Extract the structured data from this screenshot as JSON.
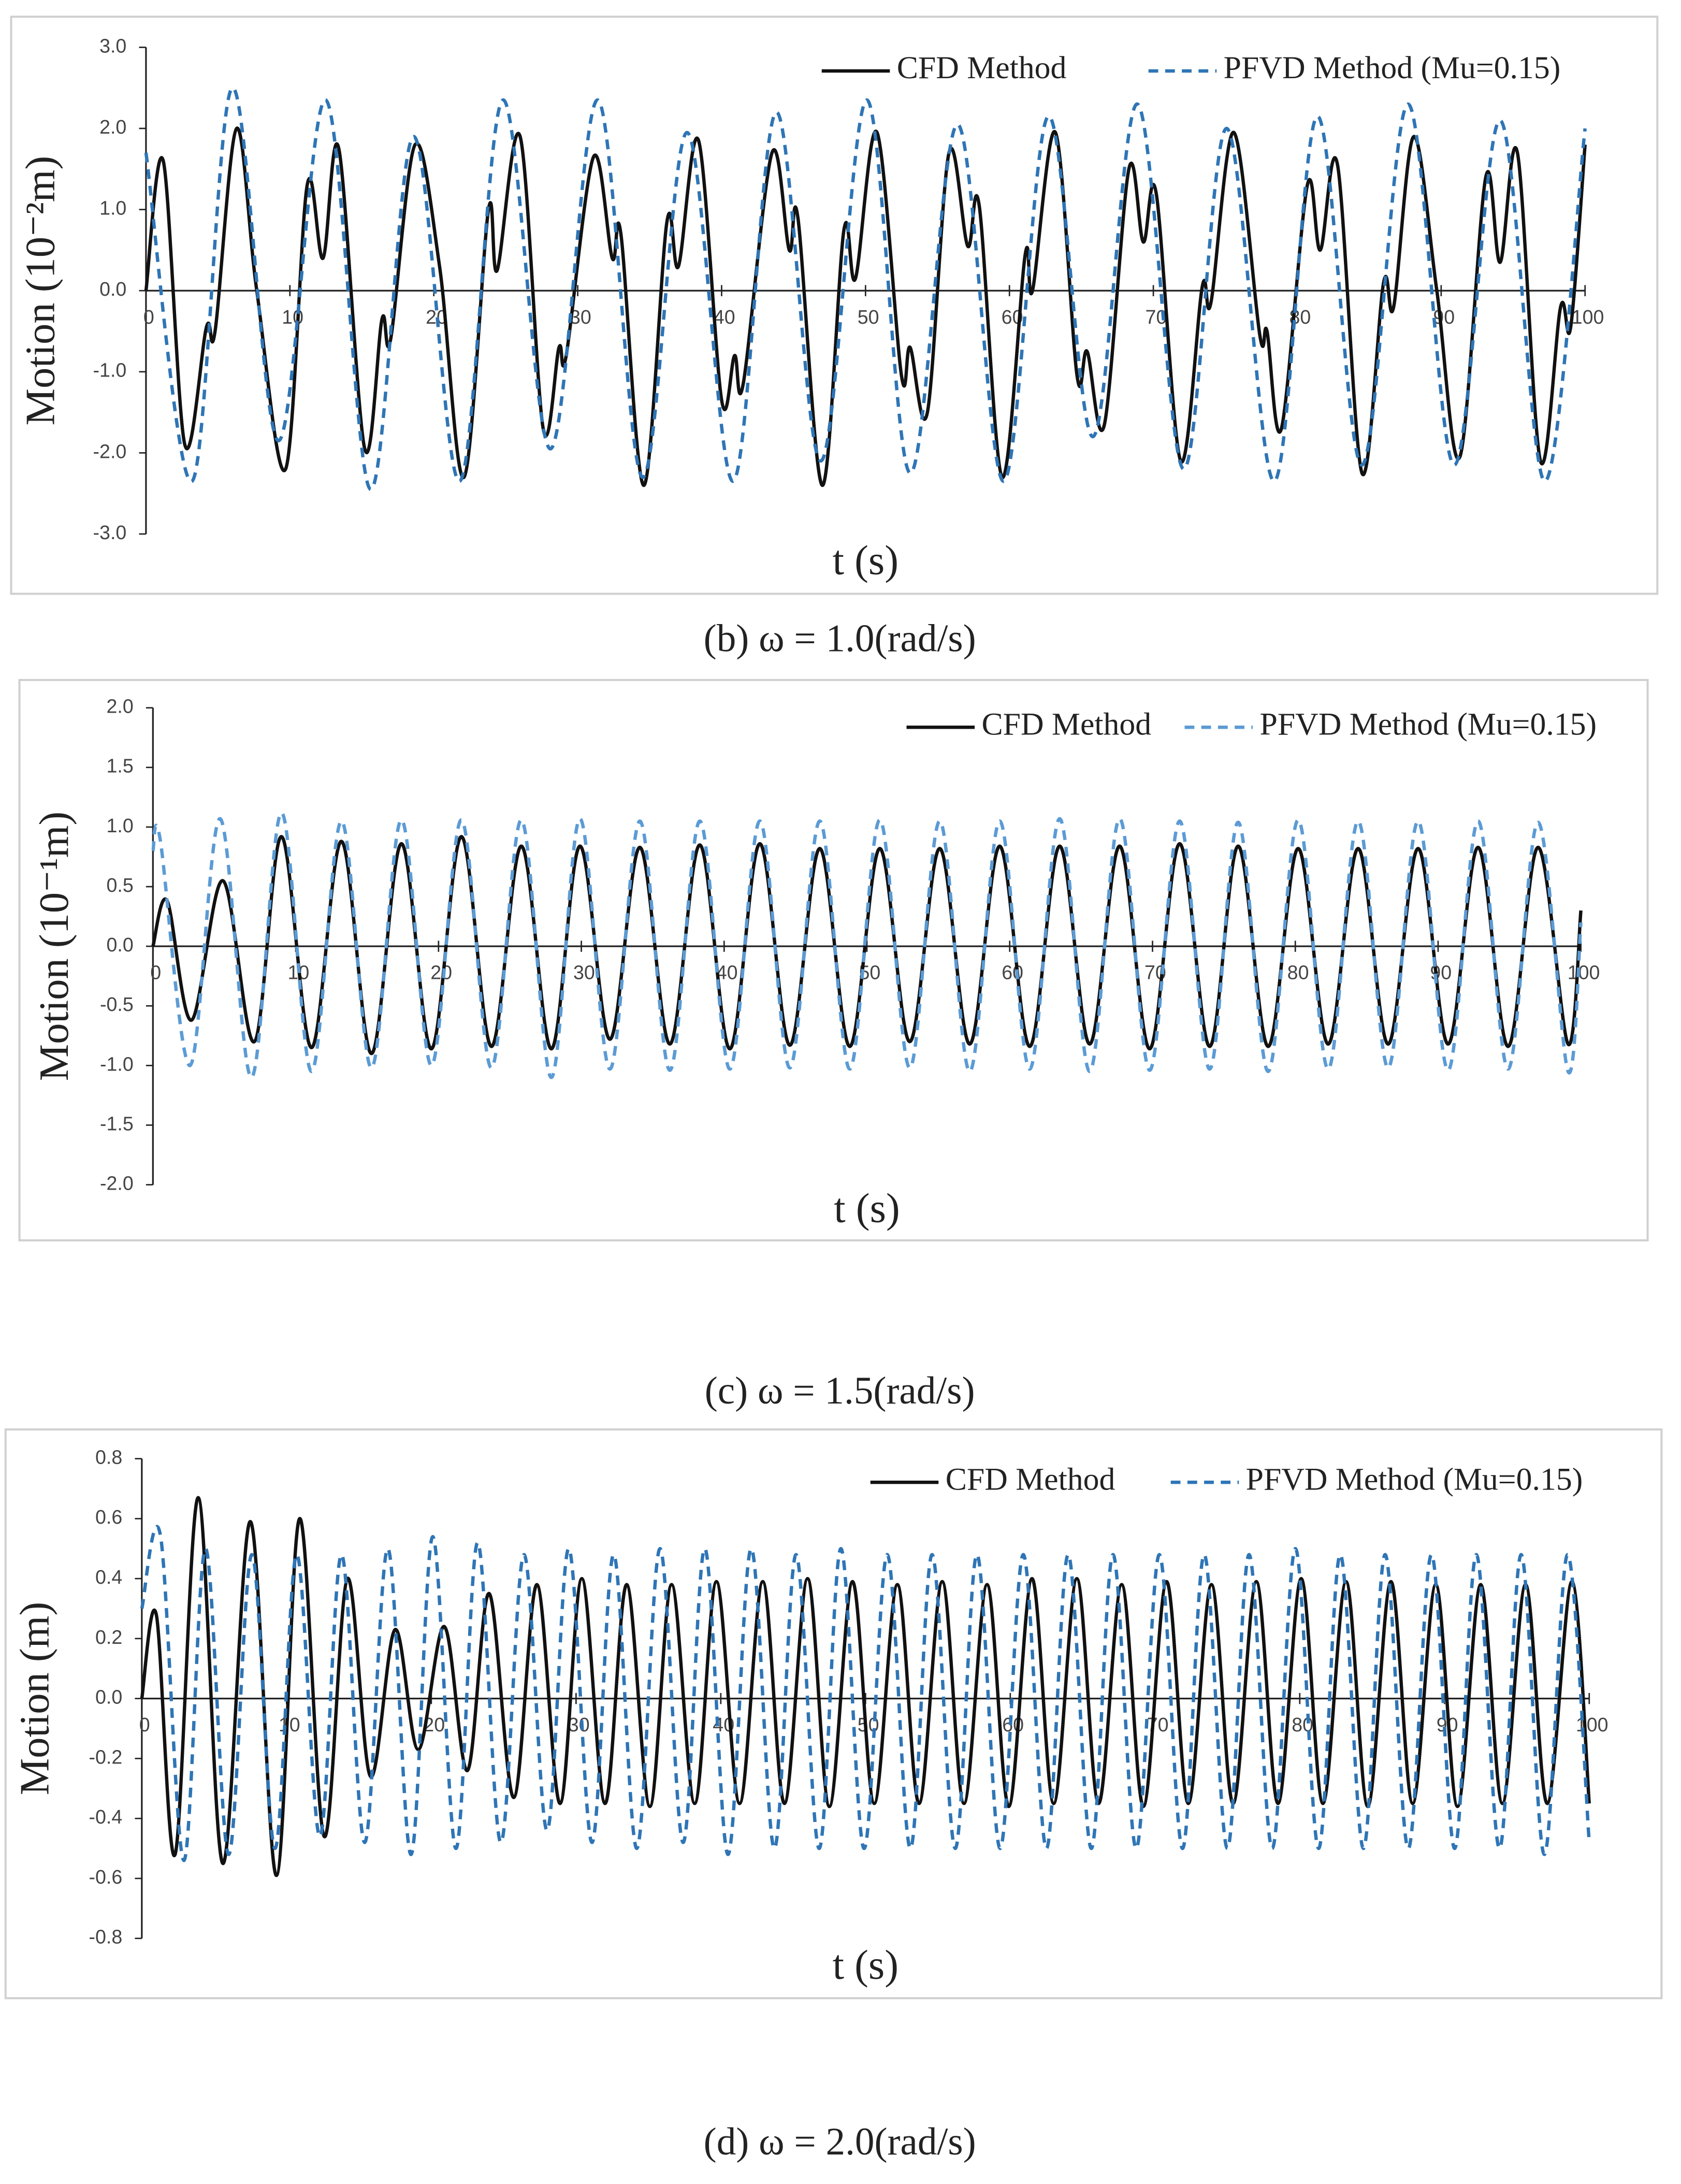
{
  "chart_data": [
    {
      "type": "line",
      "caption": "(b)  ω = 1.0(rad/s)",
      "xlabel": "t (s)",
      "ylabel": "Motion (10⁻²m)",
      "legend": "top-right",
      "xlim": [
        0,
        100
      ],
      "xticks": [
        0,
        10,
        20,
        30,
        40,
        50,
        60,
        70,
        80,
        90,
        100
      ],
      "ylim": [
        -3,
        3
      ],
      "yticks": [
        {
          "value": -3,
          "label": "-3.0"
        },
        {
          "value": -2,
          "label": "-2.0"
        },
        {
          "value": -1,
          "label": "-1.0"
        },
        {
          "value": 0,
          "label": "0.0"
        },
        {
          "value": 1,
          "label": "1.0"
        },
        {
          "value": 2,
          "label": "2.0"
        },
        {
          "value": 3,
          "label": "3.0"
        }
      ],
      "series": [
        {
          "name": "CFD Method",
          "color": "#111111",
          "dashed": false,
          "x": [
            0,
            1.2,
            2.7,
            4.2,
            4.8,
            6.3,
            7.7,
            9.7,
            11.2,
            12.3,
            13.4,
            15.2,
            16.4,
            17.0,
            18.7,
            20.4,
            22.1,
            23.8,
            24.4,
            26.0,
            27.6,
            28.7,
            29.2,
            31.1,
            32.4,
            33.0,
            34.6,
            36.2,
            37.0,
            38.4,
            40.0,
            40.9,
            41.5,
            43.5,
            44.7,
            45.3,
            47.0,
            48.5,
            49.3,
            50.8,
            52.5,
            53.1,
            54.3,
            55.8,
            57.1,
            57.9,
            59.5,
            61.1,
            61.6,
            63.2,
            64.7,
            65.4,
            66.6,
            68.3,
            69.3,
            70.2,
            71.9,
            73.4,
            74.0,
            75.6,
            77.4,
            77.9,
            78.9,
            80.7,
            81.6,
            82.8,
            84.5,
            86.0,
            86.7,
            88.1,
            89.7,
            91.3,
            93.1,
            94.1,
            95.3,
            96.9,
            98.3,
            99.0,
            100
          ],
          "values": [
            0,
            1.6,
            -1.9,
            -0.45,
            -0.5,
            2.0,
            0,
            -2.2,
            1.3,
            0.4,
            1.75,
            -1.95,
            -0.35,
            -0.6,
            1.8,
            0.3,
            -2.3,
            1.0,
            0.25,
            1.9,
            -1.7,
            -0.7,
            -0.8,
            1.65,
            0.4,
            0.7,
            -2.4,
            0.85,
            0.3,
            1.85,
            -1.35,
            -0.8,
            -1.15,
            1.7,
            0.5,
            0.9,
            -2.4,
            0.75,
            0.15,
            1.95,
            -1.05,
            -0.7,
            -1.5,
            1.7,
            0.55,
            1.05,
            -2.3,
            0.45,
            0,
            1.95,
            -1.05,
            -0.75,
            -1.65,
            1.5,
            0.6,
            1.2,
            -2.1,
            0.05,
            -0.15,
            1.95,
            -0.55,
            -0.5,
            -1.7,
            1.3,
            0.5,
            1.55,
            -2.25,
            0.1,
            -0.2,
            1.9,
            0,
            -2.05,
            1.4,
            0.35,
            1.7,
            -2.1,
            -0.2,
            -0.45,
            1.8
          ]
        },
        {
          "name": "PFVD Method (Mu=0.15)",
          "color": "#2e75b6",
          "dashed": true,
          "x": [
            0,
            3.2,
            6.0,
            9.2,
            12.5,
            15.6,
            18.6,
            21.8,
            24.8,
            28.1,
            31.4,
            34.5,
            37.6,
            40.8,
            43.8,
            46.9,
            50.1,
            53.1,
            56.4,
            59.6,
            62.7,
            65.8,
            68.9,
            72.1,
            75.1,
            78.4,
            81.4,
            84.5,
            87.7,
            90.9,
            94.1,
            97.2,
            100
          ],
          "values": [
            1.7,
            -2.35,
            2.5,
            -1.85,
            2.35,
            -2.45,
            1.9,
            -2.35,
            2.35,
            -1.95,
            2.35,
            -2.3,
            1.95,
            -2.35,
            2.2,
            -2.1,
            2.35,
            -2.25,
            2.05,
            -2.35,
            2.15,
            -1.8,
            2.3,
            -2.2,
            2.0,
            -2.35,
            2.15,
            -2.15,
            2.3,
            -2.15,
            2.1,
            -2.35,
            2.0
          ]
        }
      ]
    },
    {
      "type": "line",
      "caption": "(c)  ω = 1.5(rad/s)",
      "xlabel": "t (s)",
      "ylabel": "Motion (10⁻¹m)",
      "legend": "top-right",
      "xlim": [
        0,
        100
      ],
      "xticks": [
        0,
        10,
        20,
        30,
        40,
        50,
        60,
        70,
        80,
        90,
        100
      ],
      "ylim": [
        -2,
        2
      ],
      "yticks": [
        {
          "value": -2,
          "label": "-2.0"
        },
        {
          "value": -1.5,
          "label": "-1.5"
        },
        {
          "value": -1,
          "label": "-1.0"
        },
        {
          "value": -0.5,
          "label": "-0.5"
        },
        {
          "value": 0,
          "label": "0.0"
        },
        {
          "value": 0.5,
          "label": "0.5"
        },
        {
          "value": 1,
          "label": "1.0"
        },
        {
          "value": 1.5,
          "label": "1.5"
        },
        {
          "value": 2,
          "label": "2.0"
        }
      ],
      "series": [
        {
          "name": "CFD Method",
          "color": "#111111",
          "dashed": false,
          "x": [
            0,
            1.0,
            2.7,
            4.9,
            7.1,
            9.0,
            11.1,
            13.2,
            15.3,
            17.4,
            19.5,
            21.6,
            23.7,
            25.8,
            27.9,
            29.9,
            32.0,
            34.1,
            36.2,
            38.3,
            40.4,
            42.5,
            44.6,
            46.7,
            48.8,
            50.9,
            53.0,
            55.1,
            57.2,
            59.3,
            61.4,
            63.5,
            65.6,
            67.7,
            69.8,
            71.9,
            74.0,
            76.0,
            78.1,
            80.2,
            82.3,
            84.4,
            86.5,
            88.6,
            90.7,
            92.8,
            94.9,
            97.0,
            99.1,
            100
          ],
          "values": [
            0,
            0.38,
            -0.62,
            0.55,
            -0.8,
            0.92,
            -0.85,
            0.88,
            -0.9,
            0.86,
            -0.86,
            0.92,
            -0.84,
            0.84,
            -0.86,
            0.84,
            -0.78,
            0.83,
            -0.82,
            0.85,
            -0.86,
            0.86,
            -0.83,
            0.82,
            -0.84,
            0.82,
            -0.8,
            0.82,
            -0.82,
            0.84,
            -0.84,
            0.84,
            -0.82,
            0.84,
            -0.86,
            0.86,
            -0.84,
            0.84,
            -0.84,
            0.82,
            -0.82,
            0.82,
            -0.82,
            0.82,
            -0.82,
            0.83,
            -0.84,
            0.83,
            -0.82,
            0.3
          ]
        },
        {
          "name": "PFVD Method (Mu=0.15)",
          "color": "#5b9bd5",
          "dashed": true,
          "x": [
            0,
            0.5,
            2.6,
            4.7,
            6.9,
            9.0,
            11.1,
            13.2,
            15.3,
            17.4,
            19.5,
            21.6,
            23.7,
            25.8,
            27.9,
            29.9,
            32.0,
            34.1,
            36.2,
            38.3,
            40.4,
            42.5,
            44.6,
            46.7,
            48.8,
            50.9,
            53.0,
            55.1,
            57.2,
            59.3,
            61.4,
            63.5,
            65.6,
            67.7,
            69.8,
            71.9,
            74.0,
            76.0,
            78.1,
            80.2,
            82.3,
            84.4,
            86.5,
            88.6,
            90.7,
            92.8,
            94.9,
            97.0,
            99.1,
            100
          ],
          "values": [
            0.8,
            0.9,
            -1.0,
            1.07,
            -1.1,
            1.12,
            -1.05,
            1.05,
            -1.02,
            1.06,
            -1.0,
            1.06,
            -1.02,
            1.06,
            -1.1,
            1.07,
            -1.03,
            1.05,
            -1.04,
            1.05,
            -1.03,
            1.05,
            -1.02,
            1.05,
            -1.03,
            1.06,
            -1.02,
            1.05,
            -1.05,
            1.05,
            -1.03,
            1.07,
            -1.05,
            1.07,
            -1.04,
            1.05,
            -1.03,
            1.04,
            -1.05,
            1.06,
            -1.03,
            1.05,
            -1.02,
            1.05,
            -1.04,
            1.05,
            -1.03,
            1.04,
            -1.05,
            0.2
          ]
        }
      ]
    },
    {
      "type": "line",
      "caption": "(d)  ω = 2.0(rad/s)",
      "xlabel": "t (s)",
      "ylabel": "Motion (m)",
      "legend": "top-right",
      "xlim": [
        0,
        100
      ],
      "xticks": [
        0,
        10,
        20,
        30,
        40,
        50,
        60,
        70,
        80,
        90,
        100
      ],
      "ylim": [
        -0.8,
        0.8
      ],
      "yticks": [
        -0.8,
        -0.6,
        -0.4,
        -0.2,
        {
          "value": 0,
          "label": "0.0"
        },
        0.2,
        0.4,
        0.6,
        0.8
      ],
      "series": [
        {
          "name": "CFD Method",
          "color": "#111111",
          "dashed": false,
          "x": [
            0,
            1.0,
            2.3,
            3.9,
            5.6,
            7.5,
            9.3,
            10.9,
            12.6,
            14.2,
            15.8,
            17.5,
            19.1,
            20.9,
            22.5,
            24.0,
            25.7,
            27.3,
            28.9,
            30.4,
            32.0,
            33.5,
            35.1,
            36.6,
            38.2,
            39.7,
            41.3,
            42.9,
            44.4,
            46.0,
            47.5,
            49.1,
            50.6,
            52.2,
            53.7,
            55.3,
            56.8,
            58.4,
            59.9,
            61.5,
            63.0,
            64.6,
            66.1,
            67.7,
            69.2,
            70.8,
            72.3,
            73.9,
            75.4,
            77.0,
            78.5,
            80.1,
            81.6,
            83.2,
            84.7,
            86.3,
            87.8,
            89.4,
            90.9,
            92.5,
            94.0,
            95.6,
            97.1,
            98.8,
            100
          ],
          "values": [
            0,
            0.28,
            -0.52,
            0.67,
            -0.55,
            0.59,
            -0.59,
            0.6,
            -0.46,
            0.4,
            -0.26,
            0.23,
            -0.17,
            0.24,
            -0.24,
            0.35,
            -0.33,
            0.38,
            -0.35,
            0.4,
            -0.35,
            0.38,
            -0.36,
            0.38,
            -0.35,
            0.39,
            -0.35,
            0.39,
            -0.35,
            0.4,
            -0.36,
            0.39,
            -0.35,
            0.38,
            -0.35,
            0.39,
            -0.35,
            0.38,
            -0.36,
            0.4,
            -0.35,
            0.4,
            -0.35,
            0.38,
            -0.36,
            0.39,
            -0.35,
            0.38,
            -0.35,
            0.39,
            -0.35,
            0.4,
            -0.35,
            0.39,
            -0.36,
            0.39,
            -0.35,
            0.38,
            -0.36,
            0.38,
            -0.35,
            0.38,
            -0.35,
            0.39,
            -0.35
          ]
        },
        {
          "name": "PFVD Method (Mu=0.15)",
          "color": "#2e75b6",
          "dashed": true,
          "x": [
            0,
            1.3,
            2.9,
            4.4,
            6.0,
            7.6,
            9.2,
            10.7,
            12.3,
            13.8,
            15.4,
            17.0,
            18.6,
            20.1,
            21.7,
            23.2,
            24.8,
            26.4,
            28.0,
            29.5,
            31.1,
            32.6,
            34.2,
            35.8,
            37.4,
            38.9,
            40.5,
            42.1,
            43.7,
            45.2,
            46.8,
            48.3,
            49.9,
            51.5,
            53.1,
            54.6,
            56.2,
            57.7,
            59.3,
            60.9,
            62.5,
            64.0,
            65.6,
            67.1,
            68.7,
            70.3,
            71.9,
            73.4,
            75.0,
            76.5,
            78.1,
            79.7,
            81.3,
            82.8,
            84.4,
            85.9,
            87.5,
            89.1,
            90.7,
            92.2,
            93.8,
            95.3,
            96.9,
            98.5,
            100
          ],
          "values": [
            0.3,
            0.54,
            -0.54,
            0.5,
            -0.52,
            0.48,
            -0.5,
            0.48,
            -0.46,
            0.48,
            -0.48,
            0.5,
            -0.52,
            0.54,
            -0.5,
            0.52,
            -0.48,
            0.48,
            -0.44,
            0.5,
            -0.48,
            0.48,
            -0.5,
            0.5,
            -0.48,
            0.5,
            -0.52,
            0.5,
            -0.5,
            0.48,
            -0.5,
            0.5,
            -0.5,
            0.48,
            -0.5,
            0.48,
            -0.5,
            0.48,
            -0.5,
            0.48,
            -0.5,
            0.48,
            -0.5,
            0.48,
            -0.5,
            0.48,
            -0.5,
            0.48,
            -0.5,
            0.48,
            -0.5,
            0.5,
            -0.5,
            0.48,
            -0.5,
            0.48,
            -0.5,
            0.48,
            -0.5,
            0.48,
            -0.5,
            0.48,
            -0.52,
            0.48,
            -0.48
          ]
        }
      ]
    }
  ]
}
